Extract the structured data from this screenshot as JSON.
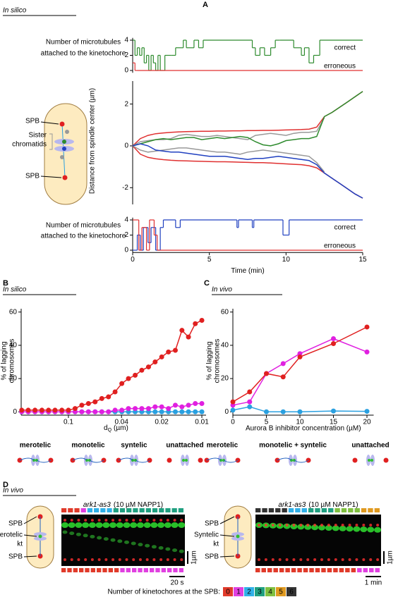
{
  "panels": [
    {
      "label": "A",
      "context": "In silico"
    },
    {
      "label": "B",
      "context": "In silico"
    },
    {
      "label": "C",
      "context": "In vivo"
    },
    {
      "label": "D",
      "context": "In vivo"
    }
  ],
  "diagram": {
    "spb_top": "SPB",
    "sister": [
      "Sister",
      "chromatids"
    ],
    "spb_bottom": "SPB"
  },
  "chart_data": [
    {
      "type": "line",
      "step": true,
      "ylabel": [
        "Number of microtubules",
        "attached to the kinetochore"
      ],
      "xlim": [
        0,
        15
      ],
      "ylim": [
        -0.3,
        4.3
      ],
      "yticks": [
        0,
        2,
        4
      ],
      "series": [
        {
          "name": "correct",
          "color": "#2e8b2e",
          "x": [
            0,
            0.15,
            0.3,
            0.45,
            0.6,
            0.75,
            0.9,
            1.05,
            1.2,
            1.35,
            1.5,
            1.65,
            1.8,
            2.1,
            2.5,
            2.8,
            3.3,
            3.5,
            4,
            4.3,
            4.6,
            7.8,
            8.0,
            8.3,
            8.6,
            9.0,
            9.3,
            9.6,
            10.5,
            11,
            11.2,
            11.5,
            11.8,
            12.2,
            15
          ],
          "values": [
            4,
            2,
            3,
            2,
            3,
            1,
            2,
            0,
            2,
            1,
            0,
            2,
            0,
            2,
            2,
            3,
            4,
            3,
            4,
            3,
            4,
            3,
            2,
            3,
            2,
            3,
            4,
            4,
            3,
            2,
            3,
            1,
            2,
            4,
            4
          ]
        },
        {
          "name": "erroneous",
          "color": "#e03030",
          "x": [
            0,
            0.15,
            0.3,
            15
          ],
          "values": [
            1,
            0,
            0,
            0
          ]
        }
      ]
    },
    {
      "type": "line",
      "ylabel": "Distance from spindle center (µm)",
      "xlim": [
        0,
        15
      ],
      "ylim": [
        -2.8,
        3.1
      ],
      "yticks": [
        -2,
        0,
        2
      ],
      "x": [
        0,
        0.5,
        1,
        1.5,
        2,
        2.5,
        3,
        3.5,
        4,
        4.5,
        5,
        5.5,
        6,
        6.5,
        7,
        7.5,
        8,
        8.5,
        9,
        9.5,
        10,
        10.5,
        11,
        11.5,
        12,
        12.5,
        13,
        13.5,
        14,
        14.5,
        15
      ],
      "series": [
        {
          "color": "#e03030",
          "values": [
            0,
            0.35,
            0.5,
            0.58,
            0.62,
            0.65,
            0.67,
            0.68,
            0.69,
            0.7,
            0.7,
            0.71,
            0.71,
            0.72,
            0.72,
            0.73,
            0.73,
            0.74,
            0.74,
            0.75,
            0.76,
            0.77,
            0.78,
            0.8,
            0.9,
            1.4,
            1.6,
            1.85,
            2.1,
            2.35,
            2.6
          ]
        },
        {
          "color": "#e03030",
          "values": [
            0,
            -0.4,
            -0.55,
            -0.62,
            -0.66,
            -0.69,
            -0.71,
            -0.72,
            -0.73,
            -0.74,
            -0.75,
            -0.76,
            -0.76,
            -0.77,
            -0.78,
            -0.79,
            -0.8,
            -0.8,
            -0.82,
            -0.84,
            -0.86,
            -0.88,
            -0.9,
            -0.95,
            -1.05,
            -1.3,
            -1.55,
            -1.8,
            -2.05,
            -2.3,
            -2.5
          ]
        },
        {
          "color": "#999999",
          "values": [
            0,
            0.2,
            0.25,
            0.3,
            0.3,
            0.35,
            0.5,
            0.55,
            0.5,
            0.45,
            0.45,
            0.5,
            0.45,
            0.4,
            0.35,
            0.3,
            0.5,
            0.55,
            0.6,
            0.55,
            0.5,
            0.6,
            0.65,
            0.65,
            0.7,
            1.35,
            null,
            null,
            null,
            null,
            null
          ]
        },
        {
          "color": "#999999",
          "values": [
            0,
            -0.2,
            -0.3,
            -0.25,
            -0.2,
            -0.15,
            -0.1,
            -0.1,
            -0.15,
            -0.2,
            -0.25,
            -0.3,
            -0.3,
            -0.35,
            -0.4,
            -0.3,
            -0.25,
            -0.2,
            -0.25,
            -0.3,
            -0.35,
            -0.4,
            -0.45,
            -0.5,
            -0.8,
            -1.25,
            null,
            null,
            null,
            null,
            null
          ]
        },
        {
          "color": "#2e8b2e",
          "values": [
            0,
            0.1,
            0.2,
            0.3,
            0.35,
            0.3,
            0.35,
            0.4,
            0.4,
            0.3,
            0.35,
            0.4,
            0.35,
            0.4,
            0.45,
            0.4,
            0.2,
            0.05,
            0,
            0.1,
            0.25,
            0.3,
            0.35,
            0.35,
            0.45,
            1.4,
            1.6,
            1.85,
            2.1,
            2.35,
            2.6
          ]
        },
        {
          "color": "#2040c0",
          "values": [
            0,
            0.1,
            0.0,
            -0.2,
            -0.25,
            -0.3,
            -0.3,
            -0.35,
            -0.4,
            -0.45,
            -0.5,
            -0.5,
            -0.5,
            -0.55,
            -0.6,
            -0.65,
            -0.6,
            -0.6,
            -0.55,
            -0.5,
            -0.55,
            -0.6,
            -0.65,
            -0.7,
            -0.9,
            -1.3,
            -1.55,
            -1.8,
            -2.05,
            -2.3,
            -2.5
          ]
        }
      ]
    },
    {
      "type": "line",
      "step": true,
      "ylabel": [
        "Number of microtubules",
        "attached to the kinetochore"
      ],
      "xlabel": "Time (min)",
      "xlim": [
        0,
        15
      ],
      "xticks": [
        0,
        5,
        10,
        15
      ],
      "ylim": [
        -0.3,
        4.3
      ],
      "yticks": [
        0,
        2,
        4
      ],
      "series": [
        {
          "name": "correct",
          "color": "#2040c0",
          "x": [
            0,
            0.3,
            0.5,
            0.7,
            1.0,
            1.2,
            1.5,
            1.8,
            2.0,
            2.8,
            3.1,
            6.8,
            6.9,
            7.8,
            7.9,
            9.8,
            10.2,
            15
          ],
          "values": [
            0,
            2,
            0,
            3,
            1,
            3,
            0,
            3,
            4,
            3,
            4,
            3,
            4,
            3,
            4,
            2,
            4,
            4
          ]
        },
        {
          "name": "erroneous",
          "color": "#e03030",
          "x": [
            0,
            0.4,
            0.6,
            0.9,
            1.1,
            1.4,
            1.6,
            15
          ],
          "values": [
            4,
            0,
            3,
            0,
            4,
            2,
            0,
            0
          ]
        }
      ]
    },
    {
      "type": "line",
      "markers": true,
      "xscale": "log",
      "ylabel": [
        "% of lagging",
        "chromosomes"
      ],
      "xlabel": [
        "d",
        "Q",
        "(µm)"
      ],
      "xlim": [
        0.226,
        0.0093
      ],
      "xticks": [
        0.1,
        0.04,
        0.02,
        0.01
      ],
      "ylim": [
        -2,
        62
      ],
      "yticks": [
        0,
        20,
        40,
        60
      ],
      "x": [
        0.224,
        0.2,
        0.178,
        0.158,
        0.141,
        0.126,
        0.112,
        0.1,
        0.0891,
        0.0794,
        0.0708,
        0.0631,
        0.0562,
        0.0501,
        0.0447,
        0.0398,
        0.0355,
        0.0316,
        0.0282,
        0.0251,
        0.0224,
        0.02,
        0.0178,
        0.0158,
        0.0141,
        0.0126,
        0.0112,
        0.01
      ],
      "series": [
        {
          "color": "#2aa0e0",
          "values": [
            0,
            0,
            0,
            0,
            0,
            0,
            0,
            0,
            0,
            0,
            0,
            0,
            0,
            0,
            0,
            0,
            0,
            0,
            0,
            0,
            0,
            0,
            0,
            0,
            0,
            0,
            0,
            0
          ]
        },
        {
          "color": "#e020e0",
          "values": [
            0,
            0,
            0,
            0,
            0,
            0,
            0,
            0,
            0,
            0,
            0,
            0,
            0,
            0,
            1,
            1,
            2,
            2,
            2,
            2,
            3,
            3,
            2,
            4,
            3,
            4,
            5,
            5
          ]
        },
        {
          "color": "#e02020",
          "values": [
            1,
            1,
            1,
            1,
            1,
            1,
            1,
            1,
            2,
            4,
            5,
            6,
            8,
            9,
            12,
            17,
            20,
            22,
            25,
            27,
            30,
            33,
            36,
            37,
            49,
            45,
            53,
            55
          ]
        }
      ],
      "legend": [
        {
          "label": "merotelic",
          "color": "#e02020"
        },
        {
          "label": "monotelic",
          "color": "#1a9a1a"
        },
        {
          "label": "syntelic",
          "color": "#e020e0"
        },
        {
          "label": "unattached",
          "color": "#2aa0e0"
        }
      ]
    },
    {
      "type": "line",
      "markers": true,
      "ylabel": [
        "% of lagging",
        "chromosomes"
      ],
      "xlabel": "Aurora B inhibitor concentration (µM)",
      "xlim": [
        0,
        21
      ],
      "xticks": [
        0,
        5,
        10,
        15,
        20
      ],
      "ylim": [
        -2,
        62
      ],
      "yticks": [
        0,
        20,
        40,
        60
      ],
      "x": [
        0,
        2.5,
        5,
        7.5,
        10,
        15,
        20
      ],
      "series": [
        {
          "color": "#2aa0e0",
          "values": [
            1,
            3,
            0,
            0,
            0,
            0.5,
            0.3
          ]
        },
        {
          "color": "#e020e0",
          "values": [
            4,
            6,
            23,
            29,
            35,
            44,
            36
          ]
        },
        {
          "color": "#e02020",
          "values": [
            6,
            12,
            23,
            21,
            33,
            41,
            51
          ]
        }
      ],
      "legend": [
        {
          "label": "merotelic",
          "color": "#e02020"
        },
        {
          "label": "monotelic + syntelic",
          "color": "#e020e0"
        },
        {
          "label": "unattached",
          "color": "#2aa0e0"
        }
      ]
    }
  ],
  "panel_D": {
    "images": [
      {
        "title": [
          "ark1-as3",
          "(10 µM NAPP1)"
        ],
        "labels": [
          "SPB",
          "Merotelic",
          "kt",
          "SPB"
        ],
        "scale_x": "20 s",
        "scale_y": "1µm"
      },
      {
        "title": [
          "ark1-as3",
          "(10 µM NAPP1)"
        ],
        "labels": [
          "SPB",
          "Syntelic",
          "kt",
          "SPB"
        ],
        "scale_x": "1 min",
        "scale_y": "1µm"
      }
    ],
    "key": {
      "label": "Number of kinetochores at the SPB:",
      "values": [
        0,
        1,
        2,
        3,
        4,
        5,
        6
      ],
      "colors": [
        "#e03a2a",
        "#e040e0",
        "#30b0e8",
        "#20a080",
        "#80c040",
        "#e09a20",
        "#333333"
      ]
    }
  }
}
